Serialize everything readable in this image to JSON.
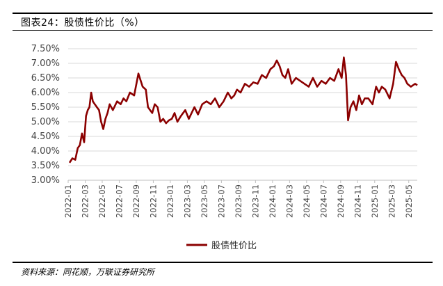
{
  "header": {
    "figure_title": "图表24：股债性价比（%）"
  },
  "footer": {
    "source": "资料来源：同花顺，万联证券研究所"
  },
  "chart_data": {
    "type": "line",
    "title": "",
    "xlabel": "",
    "ylabel": "",
    "ylim": [
      3.0,
      7.5
    ],
    "yticks": [
      3.0,
      3.5,
      4.0,
      4.5,
      5.0,
      5.5,
      6.0,
      6.5,
      7.0,
      7.5
    ],
    "ytick_labels": [
      "3.00%",
      "3.50%",
      "4.00%",
      "4.50%",
      "5.00%",
      "5.50%",
      "6.00%",
      "6.50%",
      "7.00%",
      "7.50%"
    ],
    "xticks": [
      "2022-01",
      "2022-03",
      "2022-05",
      "2022-07",
      "2022-09",
      "2022-11",
      "2023-01",
      "2023-03",
      "2023-05",
      "2023-07",
      "2023-09",
      "2023-11",
      "2024-01",
      "2024-03",
      "2024-05",
      "2024-07",
      "2024-09",
      "2024-11",
      "2025-01",
      "2025-03",
      "2025-05"
    ],
    "xlim": [
      "2022-01",
      "2025-06"
    ],
    "grid": "horizontal",
    "legend": "bottom",
    "colors": {
      "line": "#8B0000",
      "grid": "#d9d9d9",
      "axis": "#bfbfbf"
    },
    "series": [
      {
        "name": "股债性价比",
        "x": [
          "2022-01",
          "2022-01",
          "2022-01",
          "2022-02",
          "2022-02",
          "2022-02",
          "2022-02",
          "2022-03",
          "2022-03",
          "2022-03",
          "2022-03",
          "2022-03",
          "2022-04",
          "2022-04",
          "2022-04",
          "2022-04",
          "2022-05",
          "2022-05",
          "2022-05",
          "2022-05",
          "2022-06",
          "2022-06",
          "2022-07",
          "2022-07",
          "2022-07",
          "2022-08",
          "2022-08",
          "2022-09",
          "2022-09",
          "2022-10",
          "2022-10",
          "2022-10",
          "2022-10",
          "2022-11",
          "2022-11",
          "2022-11",
          "2022-12",
          "2022-12",
          "2022-12",
          "2023-01",
          "2023-01",
          "2023-01",
          "2023-02",
          "2023-02",
          "2023-03",
          "2023-03",
          "2023-03",
          "2023-04",
          "2023-04",
          "2023-05",
          "2023-05",
          "2023-06",
          "2023-06",
          "2023-07",
          "2023-07",
          "2023-08",
          "2023-08",
          "2023-08",
          "2023-09",
          "2023-09",
          "2023-10",
          "2023-10",
          "2023-11",
          "2023-11",
          "2023-12",
          "2023-12",
          "2024-01",
          "2024-01",
          "2024-01",
          "2024-02",
          "2024-02",
          "2024-02",
          "2024-03",
          "2024-03",
          "2024-04",
          "2024-04",
          "2024-05",
          "2024-05",
          "2024-06",
          "2024-06",
          "2024-07",
          "2024-07",
          "2024-08",
          "2024-08",
          "2024-09",
          "2024-09",
          "2024-09",
          "2024-09",
          "2024-10",
          "2024-10",
          "2024-10",
          "2024-11",
          "2024-11",
          "2024-11",
          "2024-12",
          "2024-12",
          "2025-01",
          "2025-01",
          "2025-01",
          "2025-02",
          "2025-02",
          "2025-03",
          "2025-03",
          "2025-03",
          "2025-04",
          "2025-04",
          "2025-04",
          "2025-05",
          "2025-05",
          "2025-06"
        ],
        "values": [
          3.6,
          3.75,
          3.7,
          4.1,
          4.2,
          4.6,
          4.3,
          5.2,
          5.4,
          5.5,
          6.0,
          5.7,
          5.6,
          5.5,
          5.4,
          5.0,
          4.75,
          5.1,
          5.3,
          5.6,
          5.4,
          5.7,
          5.6,
          5.8,
          5.7,
          6.0,
          5.9,
          6.65,
          6.2,
          6.1,
          5.5,
          5.4,
          5.3,
          5.6,
          5.5,
          5.0,
          5.1,
          4.95,
          5.05,
          5.1,
          5.3,
          5.0,
          5.2,
          5.4,
          5.1,
          5.3,
          5.5,
          5.25,
          5.6,
          5.7,
          5.6,
          5.8,
          5.5,
          5.7,
          6.0,
          5.8,
          5.9,
          6.1,
          6.0,
          6.3,
          6.2,
          6.35,
          6.3,
          6.6,
          6.5,
          6.8,
          6.9,
          7.1,
          6.9,
          6.6,
          6.5,
          6.8,
          6.3,
          6.5,
          6.4,
          6.3,
          6.2,
          6.5,
          6.2,
          6.4,
          6.3,
          6.5,
          6.4,
          6.8,
          6.5,
          7.2,
          6.6,
          5.05,
          5.5,
          5.7,
          5.4,
          5.9,
          5.6,
          5.8,
          5.8,
          5.6,
          6.2,
          6.0,
          6.2,
          6.1,
          5.8,
          6.3,
          7.05,
          6.8,
          6.6,
          6.5,
          6.3,
          6.2,
          6.3,
          6.25
        ]
      }
    ]
  }
}
